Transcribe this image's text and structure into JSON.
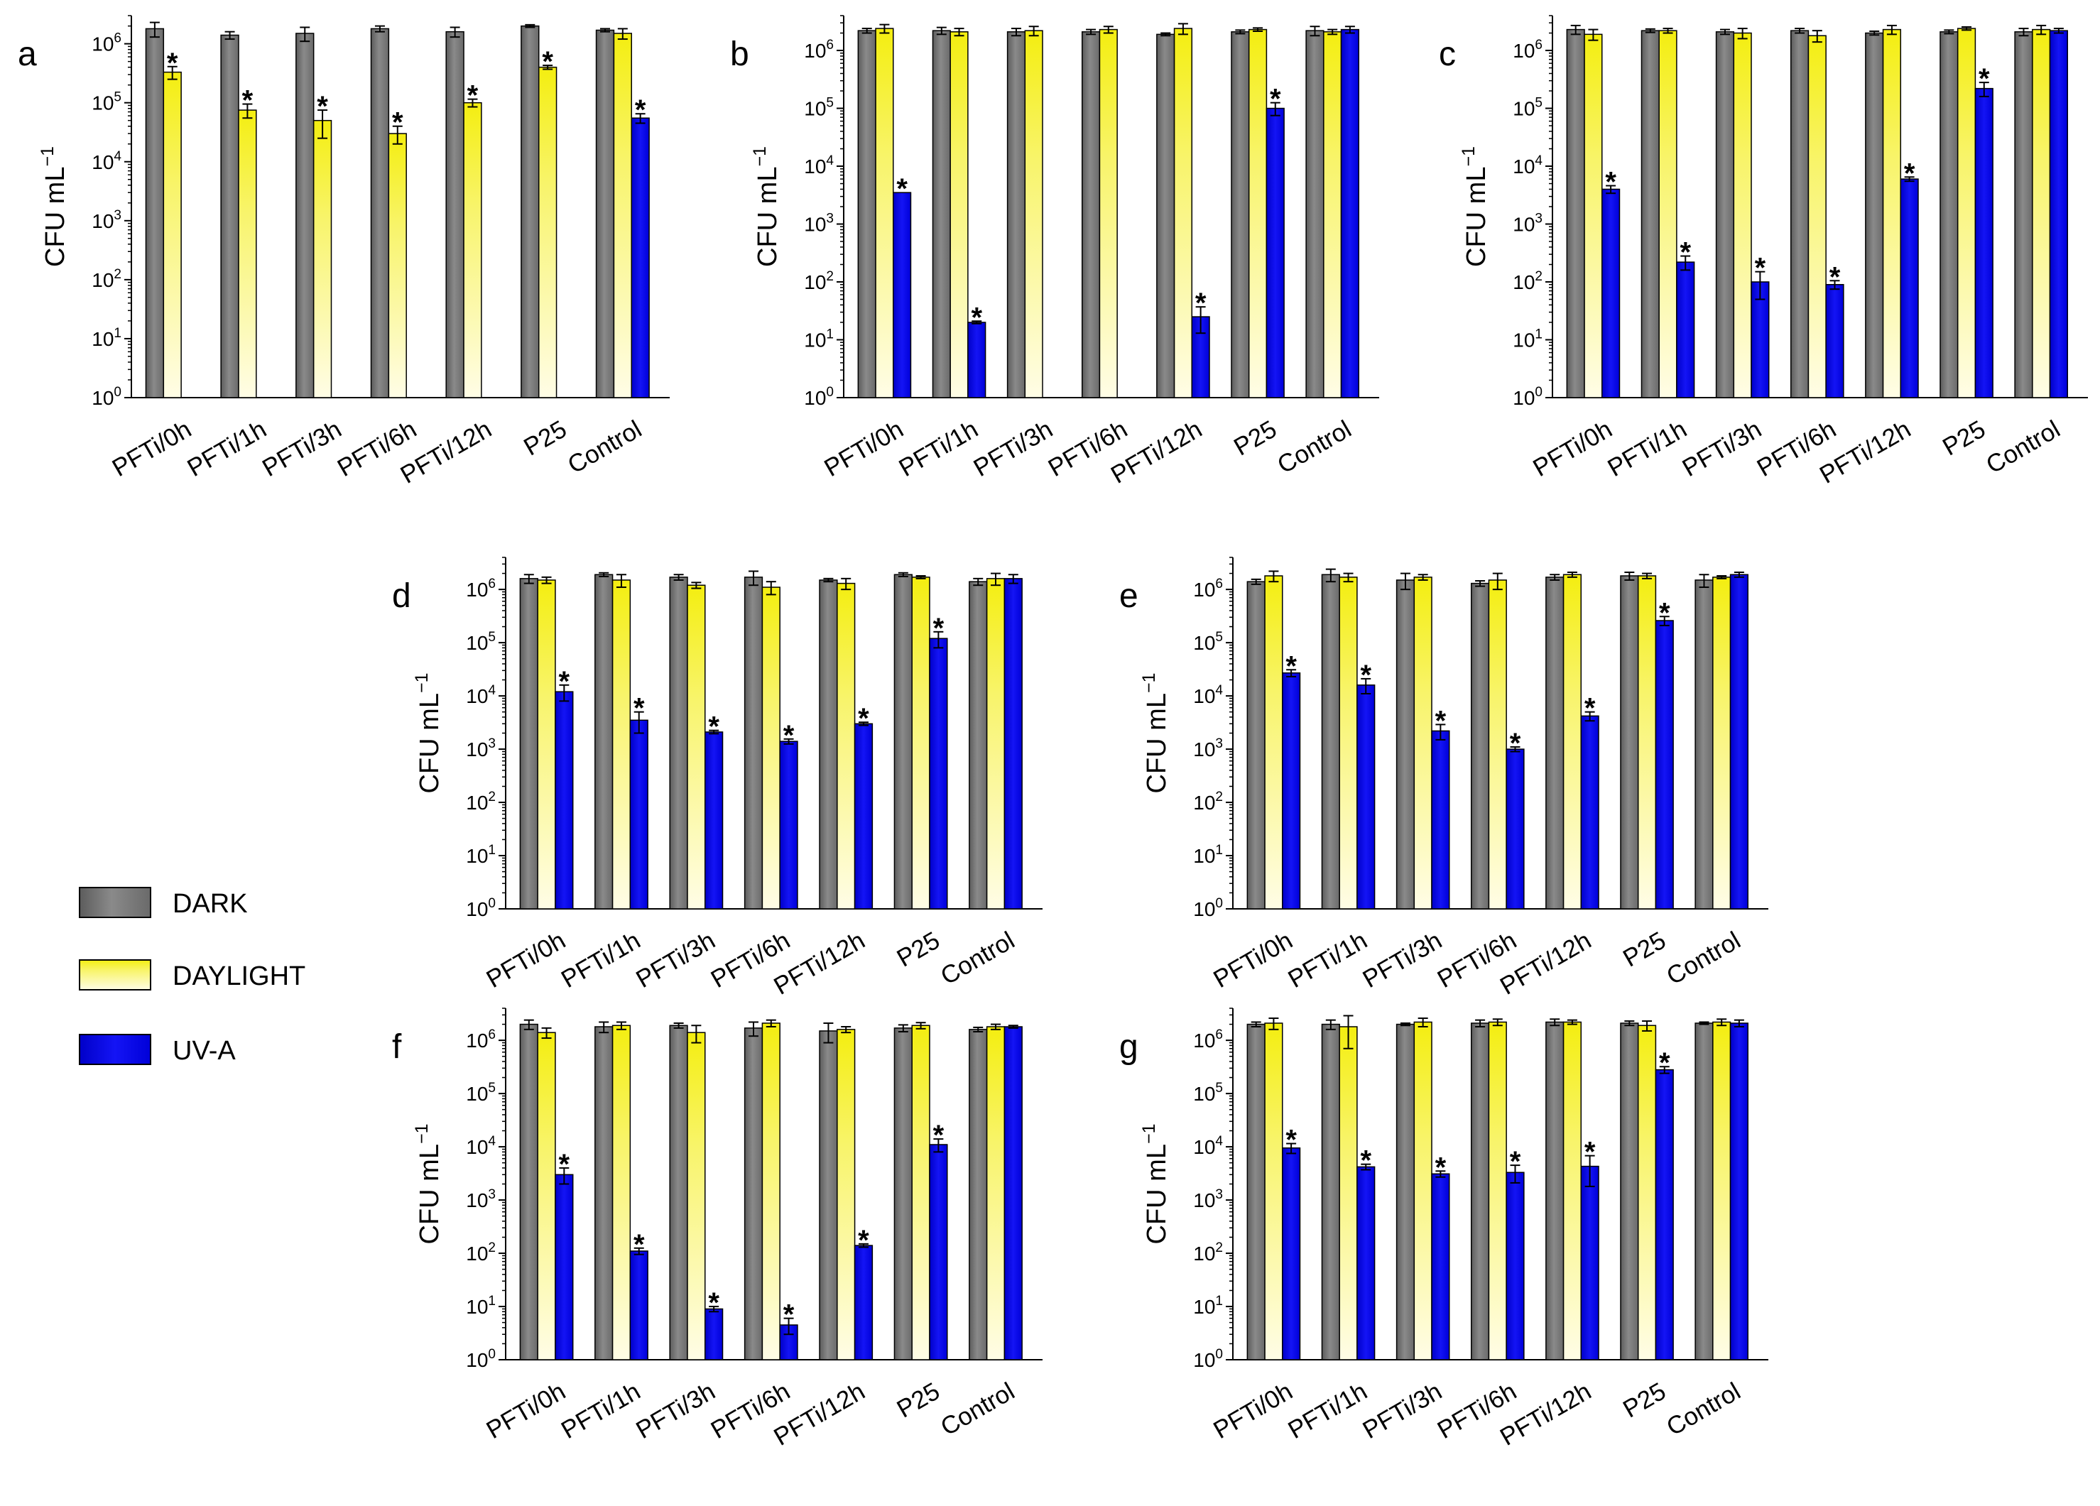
{
  "legend": {
    "items": [
      {
        "label": "DARK",
        "color": "#7a7a7a"
      },
      {
        "label": "DAYLIGHT",
        "color": "#f5f01e"
      },
      {
        "label": "UV-A",
        "color": "#0a0aee"
      }
    ]
  },
  "chart_data": [
    {
      "id": "a",
      "type": "bar",
      "panel_label": "a",
      "ylabel": "CFU mL",
      "ylabel_exp": "−1",
      "yscale": "log",
      "ylim": [
        1,
        3000000
      ],
      "ytick_exponents": [
        0,
        1,
        2,
        3,
        4,
        5,
        6
      ],
      "categories": [
        "PFTi/0h",
        "PFTi/1h",
        "PFTi/3h",
        "PFTi/6h",
        "PFTi/12h",
        "P25",
        "Control"
      ],
      "series": [
        {
          "name": "DARK",
          "values": [
            1800000,
            1400000,
            1500000,
            1800000,
            1600000,
            2000000,
            1700000
          ],
          "errors": [
            500000,
            200000,
            400000,
            200000,
            300000,
            100000,
            100000
          ]
        },
        {
          "name": "DAYLIGHT",
          "values": [
            330000,
            75000,
            50000,
            30000,
            100000,
            400000,
            1500000
          ],
          "errors": [
            80000,
            20000,
            25000,
            10000,
            15000,
            30000,
            300000
          ]
        },
        {
          "name": "UV-A",
          "values": [
            null,
            null,
            null,
            null,
            null,
            null,
            55000
          ],
          "errors": [
            null,
            null,
            null,
            null,
            null,
            null,
            10000
          ]
        }
      ],
      "significance": [
        {
          "category": "PFTi/0h",
          "series": "DAYLIGHT",
          "label": "*"
        },
        {
          "category": "PFTi/1h",
          "series": "DAYLIGHT",
          "label": "*"
        },
        {
          "category": "PFTi/3h",
          "series": "DAYLIGHT",
          "label": "*"
        },
        {
          "category": "PFTi/6h",
          "series": "DAYLIGHT",
          "label": "*"
        },
        {
          "category": "PFTi/12h",
          "series": "DAYLIGHT",
          "label": "*"
        },
        {
          "category": "P25",
          "series": "DAYLIGHT",
          "label": "*"
        },
        {
          "category": "Control",
          "series": "UV-A",
          "label": "*"
        }
      ]
    },
    {
      "id": "b",
      "type": "bar",
      "panel_label": "b",
      "ylabel": "CFU mL",
      "ylabel_exp": "−1",
      "yscale": "log",
      "ylim": [
        1,
        4000000
      ],
      "ytick_exponents": [
        0,
        1,
        2,
        3,
        4,
        5,
        6
      ],
      "categories": [
        "PFTi/0h",
        "PFTi/1h",
        "PFTi/3h",
        "PFTi/6h",
        "PFTi/12h",
        "P25",
        "Control"
      ],
      "series": [
        {
          "name": "DARK",
          "values": [
            2200000,
            2200000,
            2100000,
            2100000,
            1900000,
            2100000,
            2200000
          ],
          "errors": [
            200000,
            300000,
            300000,
            200000,
            100000,
            150000,
            400000
          ]
        },
        {
          "name": "DAYLIGHT",
          "values": [
            2400000,
            2100000,
            2200000,
            2300000,
            2400000,
            2300000,
            2100000
          ],
          "errors": [
            400000,
            300000,
            400000,
            300000,
            500000,
            150000,
            200000
          ]
        },
        {
          "name": "UV-A",
          "values": [
            3500,
            20,
            null,
            null,
            25,
            100000,
            2300000
          ],
          "errors": [
            null,
            1,
            null,
            null,
            12,
            25000,
            300000
          ]
        }
      ],
      "significance": [
        {
          "category": "PFTi/0h",
          "series": "UV-A",
          "label": "*"
        },
        {
          "category": "PFTi/1h",
          "series": "UV-A",
          "label": "*"
        },
        {
          "category": "PFTi/12h",
          "series": "UV-A",
          "label": "*"
        },
        {
          "category": "P25",
          "series": "UV-A",
          "label": "*"
        }
      ]
    },
    {
      "id": "c",
      "type": "bar",
      "panel_label": "c",
      "ylabel": "CFU mL",
      "ylabel_exp": "−1",
      "yscale": "log",
      "ylim": [
        1,
        4000000
      ],
      "ytick_exponents": [
        0,
        1,
        2,
        3,
        4,
        5,
        6
      ],
      "categories": [
        "PFTi/0h",
        "PFTi/1h",
        "PFTi/3h",
        "PFTi/6h",
        "PFTi/12h",
        "P25",
        "Control"
      ],
      "series": [
        {
          "name": "DARK",
          "values": [
            2300000,
            2200000,
            2100000,
            2200000,
            2000000,
            2100000,
            2100000
          ],
          "errors": [
            400000,
            150000,
            200000,
            200000,
            150000,
            150000,
            300000
          ]
        },
        {
          "name": "DAYLIGHT",
          "values": [
            1900000,
            2200000,
            2000000,
            1800000,
            2300000,
            2400000,
            2300000
          ],
          "errors": [
            400000,
            200000,
            400000,
            400000,
            400000,
            150000,
            400000
          ]
        },
        {
          "name": "UV-A",
          "values": [
            4000,
            220,
            100,
            90,
            6000,
            220000,
            2200000
          ],
          "errors": [
            600,
            60,
            50,
            15,
            500,
            60000,
            200000
          ]
        }
      ],
      "significance": [
        {
          "category": "PFTi/0h",
          "series": "UV-A",
          "label": "*"
        },
        {
          "category": "PFTi/1h",
          "series": "UV-A",
          "label": "*"
        },
        {
          "category": "PFTi/3h",
          "series": "UV-A",
          "label": "*"
        },
        {
          "category": "PFTi/6h",
          "series": "UV-A",
          "label": "*"
        },
        {
          "category": "PFTi/12h",
          "series": "UV-A",
          "label": "*"
        },
        {
          "category": "P25",
          "series": "UV-A",
          "label": "*"
        }
      ]
    },
    {
      "id": "d",
      "type": "bar",
      "panel_label": "d",
      "ylabel": "CFU mL",
      "ylabel_exp": "−1",
      "yscale": "log",
      "ylim": [
        1,
        4000000
      ],
      "ytick_exponents": [
        0,
        1,
        2,
        3,
        4,
        5,
        6
      ],
      "categories": [
        "PFTi/0h",
        "PFTi/1h",
        "PFTi/3h",
        "PFTi/6h",
        "PFTi/12h",
        "P25",
        "Control"
      ],
      "series": [
        {
          "name": "DARK",
          "values": [
            1600000,
            1900000,
            1700000,
            1700000,
            1500000,
            1900000,
            1400000
          ],
          "errors": [
            300000,
            150000,
            200000,
            500000,
            100000,
            150000,
            200000
          ]
        },
        {
          "name": "DAYLIGHT",
          "values": [
            1500000,
            1500000,
            1200000,
            1100000,
            1300000,
            1700000,
            1600000
          ],
          "errors": [
            200000,
            400000,
            150000,
            300000,
            300000,
            100000,
            400000
          ]
        },
        {
          "name": "UV-A",
          "values": [
            12000,
            3500,
            2100,
            1400,
            3000,
            120000,
            1600000
          ],
          "errors": [
            4000,
            1500,
            150,
            150,
            200,
            40000,
            300000
          ]
        }
      ],
      "significance": [
        {
          "category": "PFTi/0h",
          "series": "UV-A",
          "label": "*"
        },
        {
          "category": "PFTi/1h",
          "series": "UV-A",
          "label": "*"
        },
        {
          "category": "PFTi/3h",
          "series": "UV-A",
          "label": "*"
        },
        {
          "category": "PFTi/6h",
          "series": "UV-A",
          "label": "*"
        },
        {
          "category": "PFTi/12h",
          "series": "UV-A",
          "label": "*"
        },
        {
          "category": "P25",
          "series": "UV-A",
          "label": "*"
        }
      ]
    },
    {
      "id": "e",
      "type": "bar",
      "panel_label": "e",
      "ylabel": "CFU mL",
      "ylabel_exp": "−1",
      "yscale": "log",
      "ylim": [
        1,
        4000000
      ],
      "ytick_exponents": [
        0,
        1,
        2,
        3,
        4,
        5,
        6
      ],
      "categories": [
        "PFTi/0h",
        "PFTi/1h",
        "PFTi/3h",
        "PFTi/6h",
        "PFTi/12h",
        "P25",
        "Control"
      ],
      "series": [
        {
          "name": "DARK",
          "values": [
            1400000,
            1900000,
            1500000,
            1300000,
            1700000,
            1800000,
            1500000
          ],
          "errors": [
            150000,
            500000,
            500000,
            150000,
            200000,
            300000,
            400000
          ]
        },
        {
          "name": "DAYLIGHT",
          "values": [
            1800000,
            1700000,
            1700000,
            1500000,
            1900000,
            1800000,
            1700000
          ],
          "errors": [
            400000,
            300000,
            200000,
            500000,
            200000,
            200000,
            100000
          ]
        },
        {
          "name": "UV-A",
          "values": [
            27000,
            16000,
            2200,
            1000,
            4200,
            260000,
            1900000
          ],
          "errors": [
            4000,
            5000,
            700,
            100,
            800,
            50000,
            200000
          ]
        }
      ],
      "significance": [
        {
          "category": "PFTi/0h",
          "series": "UV-A",
          "label": "*"
        },
        {
          "category": "PFTi/1h",
          "series": "UV-A",
          "label": "*"
        },
        {
          "category": "PFTi/3h",
          "series": "UV-A",
          "label": "*"
        },
        {
          "category": "PFTi/6h",
          "series": "UV-A",
          "label": "*"
        },
        {
          "category": "PFTi/12h",
          "series": "UV-A",
          "label": "*"
        },
        {
          "category": "P25",
          "series": "UV-A",
          "label": "*"
        }
      ]
    },
    {
      "id": "f",
      "type": "bar",
      "panel_label": "f",
      "ylabel": "CFU mL",
      "ylabel_exp": "−1",
      "yscale": "log",
      "ylim": [
        1,
        4000000
      ],
      "ytick_exponents": [
        0,
        1,
        2,
        3,
        4,
        5,
        6
      ],
      "categories": [
        "PFTi/0h",
        "PFTi/1h",
        "PFTi/3h",
        "PFTi/6h",
        "PFTi/12h",
        "P25",
        "Control"
      ],
      "series": [
        {
          "name": "DARK",
          "values": [
            2000000,
            1800000,
            1900000,
            1700000,
            1500000,
            1700000,
            1600000
          ],
          "errors": [
            400000,
            400000,
            200000,
            500000,
            600000,
            250000,
            150000
          ]
        },
        {
          "name": "DAYLIGHT",
          "values": [
            1400000,
            1900000,
            1400000,
            2100000,
            1600000,
            1900000,
            1800000
          ],
          "errors": [
            300000,
            300000,
            500000,
            300000,
            200000,
            250000,
            200000
          ]
        },
        {
          "name": "UV-A",
          "values": [
            3000,
            110,
            9,
            4.5,
            140,
            11000,
            1800000
          ],
          "errors": [
            1000,
            15,
            1,
            1.5,
            10,
            3000,
            100000
          ]
        }
      ],
      "significance": [
        {
          "category": "PFTi/0h",
          "series": "UV-A",
          "label": "*"
        },
        {
          "category": "PFTi/1h",
          "series": "UV-A",
          "label": "*"
        },
        {
          "category": "PFTi/3h",
          "series": "UV-A",
          "label": "*"
        },
        {
          "category": "PFTi/6h",
          "series": "UV-A",
          "label": "*"
        },
        {
          "category": "PFTi/12h",
          "series": "UV-A",
          "label": "*"
        },
        {
          "category": "P25",
          "series": "UV-A",
          "label": "*"
        }
      ]
    },
    {
      "id": "g",
      "type": "bar",
      "panel_label": "g",
      "ylabel": "CFU mL",
      "ylabel_exp": "−1",
      "yscale": "log",
      "ylim": [
        1,
        4000000
      ],
      "ytick_exponents": [
        0,
        1,
        2,
        3,
        4,
        5,
        6
      ],
      "categories": [
        "PFTi/0h",
        "PFTi/1h",
        "PFTi/3h",
        "PFTi/6h",
        "PFTi/12h",
        "P25",
        "Control"
      ],
      "series": [
        {
          "name": "DARK",
          "values": [
            2000000,
            2000000,
            2000000,
            2100000,
            2200000,
            2100000,
            2100000
          ],
          "errors": [
            200000,
            400000,
            100000,
            300000,
            300000,
            200000,
            100000
          ]
        },
        {
          "name": "DAYLIGHT",
          "values": [
            2100000,
            1800000,
            2200000,
            2200000,
            2200000,
            1900000,
            2200000
          ],
          "errors": [
            500000,
            1100000,
            400000,
            300000,
            200000,
            400000,
            300000
          ]
        },
        {
          "name": "UV-A",
          "values": [
            9500,
            4200,
            3100,
            3300,
            4300,
            280000,
            2100000
          ],
          "errors": [
            2000,
            500,
            400,
            1200,
            2500,
            40000,
            300000
          ]
        }
      ],
      "significance": [
        {
          "category": "PFTi/0h",
          "series": "UV-A",
          "label": "*"
        },
        {
          "category": "PFTi/1h",
          "series": "UV-A",
          "label": "*"
        },
        {
          "category": "PFTi/3h",
          "series": "UV-A",
          "label": "*"
        },
        {
          "category": "PFTi/6h",
          "series": "UV-A",
          "label": "*"
        },
        {
          "category": "PFTi/12h",
          "series": "UV-A",
          "label": "*"
        },
        {
          "category": "P25",
          "series": "UV-A",
          "label": "*"
        }
      ]
    }
  ]
}
